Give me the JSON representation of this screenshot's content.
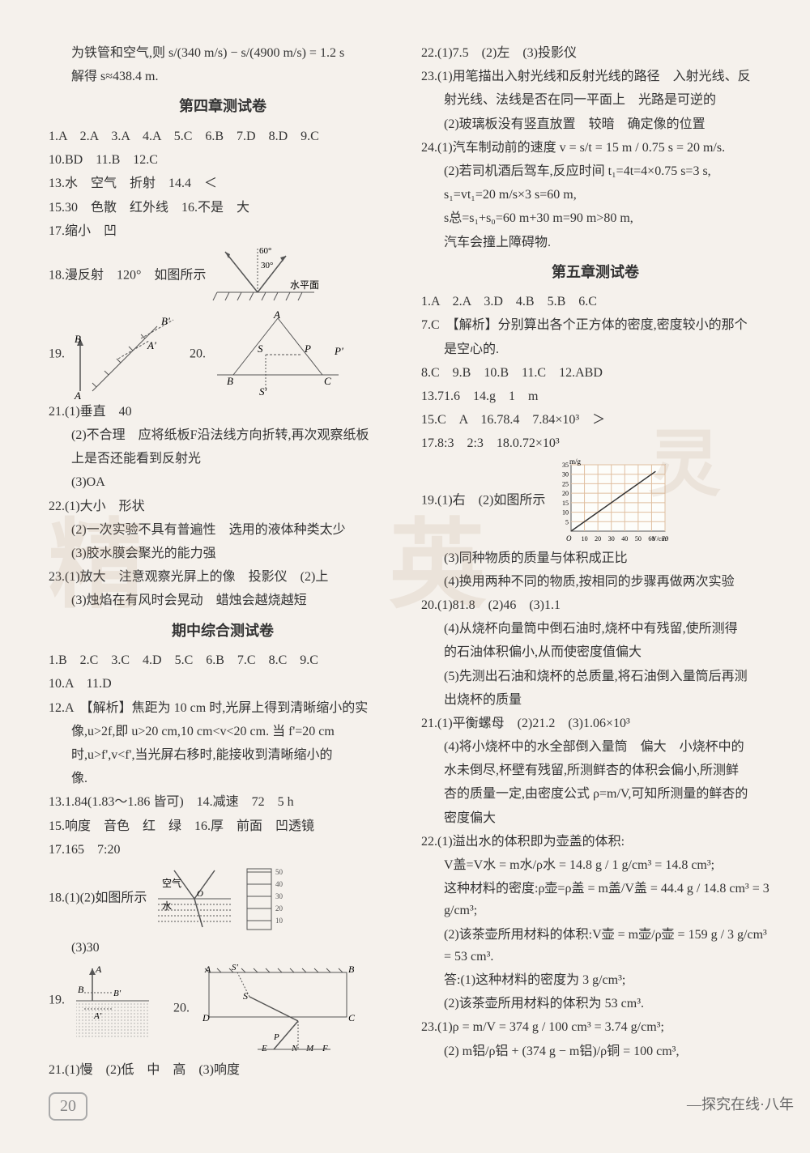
{
  "left": {
    "pre": [
      "为铁管和空气,则 s/(340 m/s) − s/(4900 m/s) = 1.2 s",
      "解得 s≈438.4 m."
    ],
    "ch4_title": "第四章测试卷",
    "ch4_lines": [
      "1.A　2.A　3.A　4.A　5.C　6.B　7.D　8.D　9.C",
      "10.BD　11.B　12.C",
      "13.水　空气　折射　14.4　＜",
      "15.30　色散　红外线　16.不是　大",
      "17.缩小　凹",
      "18.漫反射　120°　如图所示"
    ],
    "q19_label": "19.",
    "q20_label": "20.",
    "q21": [
      "21.(1)垂直　40",
      "(2)不合理　应将纸板F沿法线方向折转,再次观察纸板",
      "上是否还能看到反射光",
      "(3)OA"
    ],
    "q22": [
      "22.(1)大小　形状",
      "(2)一次实验不具有普遍性　选用的液体种类太少",
      "(3)胶水膜会聚光的能力强"
    ],
    "q23": [
      "23.(1)放大　注意观察光屏上的像　投影仪　(2)上",
      "(3)烛焰在有风时会晃动　蜡烛会越烧越短"
    ],
    "mid_title": "期中综合测试卷",
    "mid_lines": [
      "1.B　2.C　3.C　4.D　5.C　6.B　7.C　8.C　9.C",
      "10.A　11.D",
      "12.A　【解析】焦距为 10 cm 时,光屏上得到清晰缩小的实",
      "像,u>2f,即 u>20 cm,10 cm<v<20 cm. 当 f'=20 cm",
      "时,u>f',v<f',当光屏右移时,能接收到清晰缩小的",
      "像.",
      "13.1.84(1.83～1.86 皆可)　14.减速　72　5 h",
      "15.响度　音色　红　绿　16.厚　前面　凹透镜",
      "17.165　7:20",
      "18.(1)(2)如图所示"
    ],
    "q18_sub": "(3)30",
    "q19b_label": "19.",
    "q20b_label": "20.",
    "q21b": "21.(1)慢　(2)低　中　高　(3)响度"
  },
  "right": {
    "pre": [
      "22.(1)7.5　(2)左　(3)投影仪",
      "23.(1)用笔描出入射光线和反射光线的路径　入射光线、反",
      "射光线、法线是否在同一平面上　光路是可逆的",
      "(2)玻璃板没有竖直放置　较暗　确定像的位置",
      "24.(1)汽车制动前的速度 v = s/t = 15 m / 0.75 s = 20 m/s.",
      "(2)若司机酒后驾车,反应时间 t₁=4t=4×0.75 s=3 s,",
      "s₁=vt₁=20 m/s×3 s=60 m,",
      "s总=s₁+s₀=60 m+30 m=90 m>80 m,",
      "汽车会撞上障碍物."
    ],
    "ch5_title": "第五章测试卷",
    "ch5_lines": [
      "1.A　2.A　3.D　4.B　5.B　6.C",
      "7.C　【解析】分别算出各个正方体的密度,密度较小的那个",
      "是空心的.",
      "8.C　9.B　10.B　11.C　12.ABD",
      "13.71.6　14.g　1　m",
      "15.C　A　16.78.4　7.84×10³　＞",
      "17.8:3　2:3　18.0.72×10³",
      "19.(1)右　(2)如图所示"
    ],
    "q19_after": [
      "(3)同种物质的质量与体积成正比",
      "(4)换用两种不同的物质,按相同的步骤再做两次实验"
    ],
    "q20_lines": [
      "20.(1)81.8　(2)46　(3)1.1",
      "(4)从烧杯向量筒中倒石油时,烧杯中有残留,使所测得",
      "的石油体积偏小,从而使密度值偏大",
      "(5)先测出石油和烧杯的总质量,将石油倒入量筒后再测",
      "出烧杯的质量"
    ],
    "q21_lines": [
      "21.(1)平衡螺母　(2)21.2　(3)1.06×10³",
      "(4)将小烧杯中的水全部倒入量筒　偏大　小烧杯中的",
      "水未倒尽,杯壁有残留,所测鲜杏的体积会偏小,所测鲜",
      "杏的质量一定,由密度公式 ρ=m/V,可知所测量的鲜杏的",
      "密度偏大"
    ],
    "q22_lines": [
      "22.(1)溢出水的体积即为壶盖的体积:",
      "V盖=V水 = m水/ρ水 = 14.8 g / 1 g/cm³ = 14.8 cm³;",
      "这种材料的密度:ρ壶=ρ盖 = m盖/V盖 = 44.4 g / 14.8 cm³ = 3 g/cm³;",
      "(2)该茶壶所用材料的体积:V壶 = m壶/ρ壶 = 159 g / 3 g/cm³ = 53 cm³.",
      "答:(1)这种材料的密度为 3 g/cm³;",
      "(2)该茶壶所用材料的体积为 53 cm³."
    ],
    "q23_lines": [
      "23.(1)ρ = m/V = 374 g / 100 cm³ = 3.74 g/cm³;",
      "(2) m铝/ρ铝 + (374 g − m铝)/ρ铜 = 100 cm³,"
    ]
  },
  "page_number": "20",
  "footer": "—探究在线·八年",
  "diagrams": {
    "d18": {
      "labels": [
        "60°",
        "30°",
        "水平面"
      ],
      "stroke": "#555"
    },
    "d19": {
      "labels": [
        "A",
        "B",
        "A'",
        "B'"
      ],
      "stroke": "#555"
    },
    "d20": {
      "labels": [
        "A",
        "B",
        "C",
        "S",
        "S'",
        "P",
        "P'"
      ],
      "stroke": "#555"
    },
    "d18b": {
      "labels": [
        "空气",
        "水",
        "O",
        "50",
        "40",
        "30",
        "20",
        "10"
      ],
      "stroke": "#555"
    },
    "d19b": {
      "labels": [
        "A",
        "B",
        "A'",
        "B'"
      ],
      "stroke": "#555"
    },
    "d20b": {
      "labels": [
        "A",
        "B",
        "C",
        "D",
        "E",
        "F",
        "S",
        "S'",
        "N",
        "M",
        "P"
      ],
      "stroke": "#555"
    },
    "chart": {
      "ylabel": "m/g",
      "xlabel": "V/cm³",
      "yticks": [
        "5",
        "10",
        "15",
        "20",
        "25",
        "30",
        "35"
      ],
      "xticks": [
        "10",
        "20",
        "30",
        "40",
        "50",
        "60",
        "70"
      ],
      "grid_color": "#e0bfa0",
      "line_color": "#333",
      "bg": "#fdfdfa"
    }
  }
}
